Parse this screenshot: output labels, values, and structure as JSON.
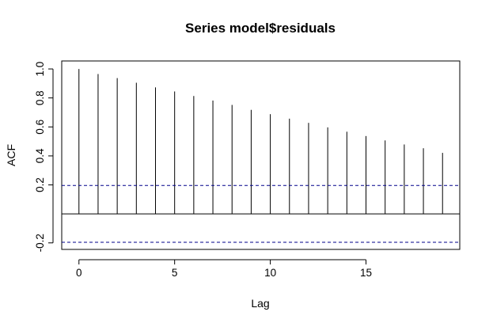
{
  "chart_data": {
    "type": "bar",
    "title": "Series  model$residuals",
    "xlabel": "Lag",
    "ylabel": "ACF",
    "x": [
      0,
      1,
      2,
      3,
      4,
      5,
      6,
      7,
      8,
      9,
      10,
      11,
      12,
      13,
      14,
      15,
      16,
      17,
      18,
      19
    ],
    "values": [
      1.0,
      0.965,
      0.937,
      0.905,
      0.873,
      0.845,
      0.813,
      0.782,
      0.752,
      0.718,
      0.688,
      0.657,
      0.628,
      0.597,
      0.567,
      0.537,
      0.507,
      0.479,
      0.453,
      0.421
    ],
    "xlim": [
      -0.9,
      19.9
    ],
    "ylim": [
      -0.245,
      1.055
    ],
    "xticks": [
      0,
      5,
      10,
      15
    ],
    "xtick_labels": [
      "0",
      "5",
      "10",
      "15"
    ],
    "yticks": [
      -0.2,
      0.2,
      0.4,
      0.6,
      0.8,
      1.0
    ],
    "ytick_labels": [
      "-0.2",
      "0.2",
      "0.4",
      "0.6",
      "0.8",
      "1.0"
    ],
    "zero_line": 0,
    "confidence_bounds": [
      0.196,
      -0.196
    ],
    "confidence_color": "#00008b",
    "grid": false
  }
}
